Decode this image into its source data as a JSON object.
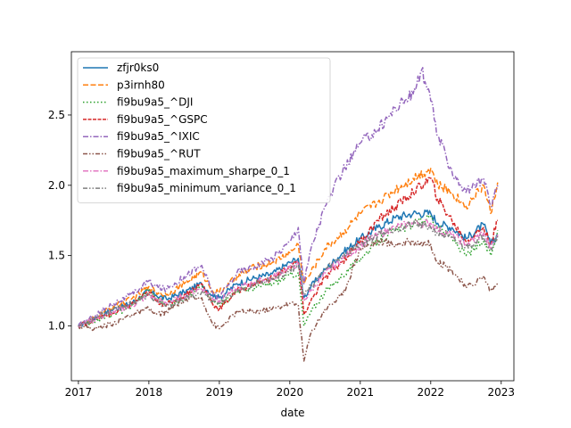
{
  "chart_data": {
    "type": "line",
    "title": "",
    "xlabel": "date",
    "ylabel": "",
    "xlim": [
      2016.9,
      2023.18
    ],
    "ylim": [
      0.61,
      2.95
    ],
    "x_ticks": [
      2017,
      2018,
      2019,
      2020,
      2021,
      2022,
      2023
    ],
    "x_tick_labels": [
      "2017",
      "2018",
      "2019",
      "2020",
      "2021",
      "2022",
      "2023"
    ],
    "y_ticks": [
      1.0,
      1.5,
      2.0,
      2.5
    ],
    "y_tick_labels": [
      "1.0",
      "1.5",
      "2.0",
      "2.5"
    ],
    "grid": false,
    "legend_position": "upper-left",
    "series": [
      {
        "name": "zfjr0ks0",
        "color": "#1f77b4",
        "style": "solid",
        "x": [
          2017.0,
          2017.25,
          2017.5,
          2017.75,
          2018.0,
          2018.1,
          2018.25,
          2018.5,
          2018.75,
          2018.9,
          2019.0,
          2019.25,
          2019.5,
          2019.75,
          2020.0,
          2020.12,
          2020.2,
          2020.3,
          2020.5,
          2020.75,
          2021.0,
          2021.25,
          2021.5,
          2021.75,
          2022.0,
          2022.1,
          2022.3,
          2022.5,
          2022.75,
          2022.85,
          2022.95
        ],
        "y": [
          1.0,
          1.06,
          1.12,
          1.16,
          1.25,
          1.22,
          1.19,
          1.24,
          1.3,
          1.22,
          1.2,
          1.3,
          1.34,
          1.37,
          1.45,
          1.48,
          1.2,
          1.28,
          1.4,
          1.52,
          1.62,
          1.7,
          1.77,
          1.8,
          1.8,
          1.73,
          1.7,
          1.62,
          1.72,
          1.58,
          1.65
        ]
      },
      {
        "name": "p3irnh80",
        "color": "#ff7f0e",
        "style": "dashed",
        "x": [
          2017.0,
          2017.25,
          2017.5,
          2017.75,
          2018.0,
          2018.1,
          2018.25,
          2018.5,
          2018.75,
          2018.9,
          2019.0,
          2019.25,
          2019.5,
          2019.75,
          2020.0,
          2020.12,
          2020.2,
          2020.3,
          2020.5,
          2020.75,
          2021.0,
          2021.25,
          2021.5,
          2021.75,
          2022.0,
          2022.1,
          2022.3,
          2022.5,
          2022.75,
          2022.85,
          2022.95
        ],
        "y": [
          1.0,
          1.06,
          1.14,
          1.19,
          1.28,
          1.24,
          1.22,
          1.3,
          1.38,
          1.25,
          1.24,
          1.35,
          1.42,
          1.45,
          1.52,
          1.58,
          1.3,
          1.38,
          1.55,
          1.66,
          1.8,
          1.88,
          1.97,
          2.05,
          2.12,
          2.0,
          1.95,
          1.85,
          2.0,
          1.8,
          2.02
        ]
      },
      {
        "name": "fi9bu9a5_^DJI",
        "color": "#2ca02c",
        "style": "dotted",
        "x": [
          2017.0,
          2017.25,
          2017.5,
          2017.75,
          2018.0,
          2018.1,
          2018.25,
          2018.5,
          2018.75,
          2018.9,
          2019.0,
          2019.25,
          2019.5,
          2019.75,
          2020.0,
          2020.12,
          2020.2,
          2020.3,
          2020.5,
          2020.75,
          2021.0,
          2021.25,
          2021.5,
          2021.75,
          2022.0,
          2022.1,
          2022.3,
          2022.5,
          2022.75,
          2022.85,
          2022.95
        ],
        "y": [
          1.0,
          1.04,
          1.08,
          1.14,
          1.26,
          1.2,
          1.15,
          1.2,
          1.28,
          1.18,
          1.14,
          1.25,
          1.27,
          1.3,
          1.36,
          1.38,
          1.0,
          1.1,
          1.24,
          1.36,
          1.48,
          1.6,
          1.68,
          1.72,
          1.78,
          1.7,
          1.63,
          1.5,
          1.6,
          1.5,
          1.68
        ]
      },
      {
        "name": "fi9bu9a5_^GSPC",
        "color": "#d62728",
        "style": "dashed-fine",
        "x": [
          2017.0,
          2017.25,
          2017.5,
          2017.75,
          2018.0,
          2018.1,
          2018.25,
          2018.5,
          2018.75,
          2018.9,
          2019.0,
          2019.25,
          2019.5,
          2019.75,
          2020.0,
          2020.12,
          2020.2,
          2020.3,
          2020.5,
          2020.75,
          2021.0,
          2021.25,
          2021.5,
          2021.75,
          2022.0,
          2022.1,
          2022.3,
          2022.5,
          2022.75,
          2022.85,
          2022.95
        ],
        "y": [
          1.0,
          1.05,
          1.09,
          1.15,
          1.24,
          1.18,
          1.15,
          1.22,
          1.3,
          1.16,
          1.12,
          1.25,
          1.3,
          1.34,
          1.42,
          1.46,
          1.08,
          1.18,
          1.34,
          1.46,
          1.6,
          1.75,
          1.85,
          1.95,
          2.05,
          1.9,
          1.75,
          1.6,
          1.7,
          1.58,
          1.75
        ]
      },
      {
        "name": "fi9bu9a5_^IXIC",
        "color": "#9467bd",
        "style": "dash-dot",
        "x": [
          2017.0,
          2017.25,
          2017.5,
          2017.75,
          2018.0,
          2018.1,
          2018.25,
          2018.5,
          2018.75,
          2018.9,
          2019.0,
          2019.25,
          2019.5,
          2019.75,
          2020.0,
          2020.12,
          2020.2,
          2020.3,
          2020.5,
          2020.75,
          2021.0,
          2021.25,
          2021.5,
          2021.75,
          2021.87,
          2022.0,
          2022.1,
          2022.3,
          2022.5,
          2022.75,
          2022.85,
          2022.95
        ],
        "y": [
          1.0,
          1.08,
          1.16,
          1.22,
          1.32,
          1.28,
          1.26,
          1.35,
          1.43,
          1.24,
          1.2,
          1.38,
          1.42,
          1.48,
          1.6,
          1.7,
          1.3,
          1.55,
          1.85,
          2.1,
          2.3,
          2.4,
          2.55,
          2.65,
          2.82,
          2.6,
          2.35,
          2.1,
          1.95,
          2.05,
          1.85,
          2.0
        ]
      },
      {
        "name": "fi9bu9a5_^RUT",
        "color": "#8c564b",
        "style": "dash-dot-dot",
        "x": [
          2017.0,
          2017.25,
          2017.5,
          2017.75,
          2018.0,
          2018.1,
          2018.25,
          2018.5,
          2018.75,
          2018.9,
          2019.0,
          2019.25,
          2019.5,
          2019.75,
          2020.0,
          2020.12,
          2020.2,
          2020.3,
          2020.5,
          2020.75,
          2021.0,
          2021.25,
          2021.5,
          2021.75,
          2022.0,
          2022.1,
          2022.3,
          2022.5,
          2022.75,
          2022.85,
          2022.95
        ],
        "y": [
          1.0,
          0.98,
          1.02,
          1.08,
          1.12,
          1.08,
          1.1,
          1.18,
          1.2,
          1.02,
          0.98,
          1.1,
          1.1,
          1.12,
          1.16,
          1.15,
          0.75,
          0.95,
          1.12,
          1.22,
          1.55,
          1.6,
          1.58,
          1.6,
          1.58,
          1.45,
          1.4,
          1.27,
          1.35,
          1.25,
          1.3
        ]
      },
      {
        "name": "fi9bu9a5_maximum_sharpe_0_1",
        "color": "#e377c2",
        "style": "dash-dot",
        "x": [
          2017.0,
          2017.25,
          2017.5,
          2017.75,
          2018.0,
          2018.1,
          2018.25,
          2018.5,
          2018.75,
          2018.9,
          2019.0,
          2019.25,
          2019.5,
          2019.75,
          2020.0,
          2020.12,
          2020.2,
          2020.3,
          2020.5,
          2020.75,
          2021.0,
          2021.25,
          2021.5,
          2021.75,
          2022.0,
          2022.1,
          2022.3,
          2022.5,
          2022.75,
          2022.85,
          2022.95
        ],
        "y": [
          1.0,
          1.05,
          1.1,
          1.14,
          1.22,
          1.19,
          1.16,
          1.21,
          1.27,
          1.2,
          1.18,
          1.27,
          1.31,
          1.34,
          1.42,
          1.44,
          1.18,
          1.25,
          1.37,
          1.48,
          1.57,
          1.65,
          1.7,
          1.73,
          1.73,
          1.68,
          1.65,
          1.58,
          1.66,
          1.55,
          1.65
        ]
      },
      {
        "name": "fi9bu9a5_minimum_variance_0_1",
        "color": "#7f7f7f",
        "style": "dash-dot-dot",
        "x": [
          2017.0,
          2017.25,
          2017.5,
          2017.75,
          2018.0,
          2018.1,
          2018.25,
          2018.5,
          2018.75,
          2018.9,
          2019.0,
          2019.25,
          2019.5,
          2019.75,
          2020.0,
          2020.12,
          2020.2,
          2020.3,
          2020.5,
          2020.75,
          2021.0,
          2021.25,
          2021.5,
          2021.75,
          2022.0,
          2022.1,
          2022.3,
          2022.5,
          2022.75,
          2022.85,
          2022.95
        ],
        "y": [
          1.0,
          1.06,
          1.12,
          1.16,
          1.22,
          1.18,
          1.14,
          1.19,
          1.24,
          1.18,
          1.16,
          1.25,
          1.3,
          1.33,
          1.4,
          1.43,
          1.22,
          1.28,
          1.4,
          1.5,
          1.58,
          1.65,
          1.69,
          1.72,
          1.7,
          1.66,
          1.62,
          1.56,
          1.64,
          1.55,
          1.64
        ]
      }
    ]
  }
}
